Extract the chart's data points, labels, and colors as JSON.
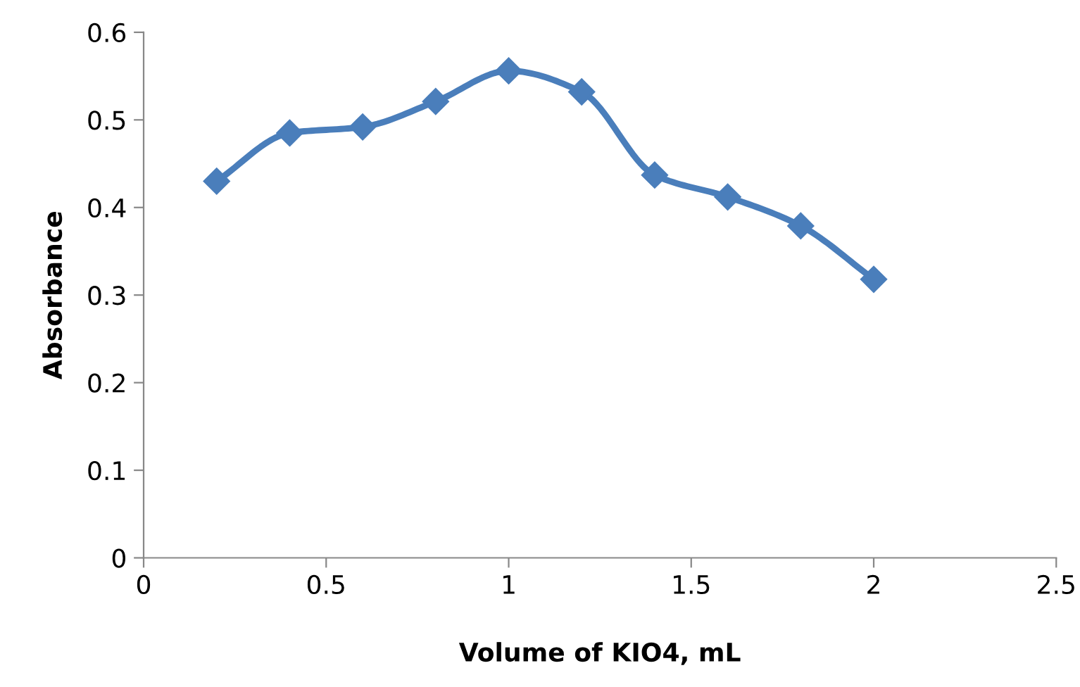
{
  "chart_data": {
    "type": "line",
    "xlabel": "Volume of KIO4, mL",
    "ylabel": "Absorbance",
    "x": [
      0.2,
      0.4,
      0.6,
      0.8,
      1.0,
      1.2,
      1.4,
      1.6,
      1.8,
      2.0
    ],
    "series": [
      {
        "color": "#4a7ebb",
        "values": [
          0.43,
          0.485,
          0.492,
          0.521,
          0.556,
          0.532,
          0.437,
          0.412,
          0.379,
          0.318
        ]
      }
    ],
    "xlim": [
      0,
      2.5
    ],
    "xticks": [
      0,
      0.5,
      1,
      1.5,
      2,
      2.5
    ],
    "ylim": [
      0,
      0.6
    ],
    "yticks": [
      0,
      0.1,
      0.2,
      0.3,
      0.4,
      0.5,
      0.6
    ],
    "marker": "diamond",
    "line_style": "solid",
    "grid": false,
    "legend": false
  }
}
